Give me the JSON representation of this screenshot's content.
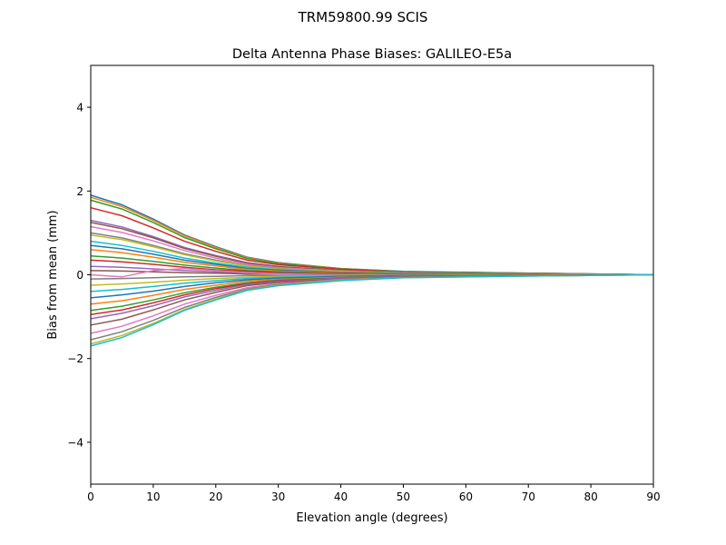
{
  "chart_data": {
    "type": "line",
    "suptitle": "TRM59800.99     SCIS",
    "title": "Delta Antenna Phase Biases: GALILEO-E5a",
    "xlabel": "Elevation angle (degrees)",
    "ylabel": "Bias from mean (mm)",
    "xlim": [
      0,
      90
    ],
    "ylim": [
      -5,
      5
    ],
    "xticks": [
      0,
      10,
      20,
      30,
      40,
      50,
      60,
      70,
      80,
      90
    ],
    "yticks": [
      -4,
      -2,
      0,
      2,
      4
    ],
    "ytick_labels": [
      "−4",
      "−2",
      "0",
      "2",
      "4"
    ],
    "grid": false,
    "colors": [
      "#1f77b4",
      "#ff7f0e",
      "#2ca02c",
      "#d62728",
      "#9467bd",
      "#8c564b",
      "#e377c2",
      "#7f7f7f",
      "#bcbd22",
      "#17becf"
    ],
    "x": [
      0,
      5,
      10,
      15,
      20,
      25,
      30,
      40,
      50,
      70,
      90
    ],
    "series": [
      {
        "values": [
          1.9,
          1.67,
          1.33,
          0.95,
          0.67,
          0.42,
          0.29,
          0.15,
          0.08,
          0.04,
          0
        ]
      },
      {
        "values": [
          1.85,
          1.63,
          1.3,
          0.93,
          0.65,
          0.41,
          0.28,
          0.15,
          0.07,
          0.04,
          0
        ]
      },
      {
        "values": [
          1.78,
          1.57,
          1.25,
          0.89,
          0.62,
          0.39,
          0.27,
          0.14,
          0.07,
          0.04,
          0
        ]
      },
      {
        "values": [
          1.6,
          1.41,
          1.12,
          0.8,
          0.56,
          0.35,
          0.24,
          0.13,
          0.06,
          0.03,
          0
        ]
      },
      {
        "values": [
          1.3,
          1.14,
          0.91,
          0.65,
          0.46,
          0.29,
          0.2,
          0.1,
          0.05,
          0.03,
          0
        ]
      },
      {
        "values": [
          1.25,
          1.1,
          0.88,
          0.63,
          0.44,
          0.28,
          0.19,
          0.1,
          0.05,
          0.03,
          0
        ]
      },
      {
        "values": [
          1.15,
          1.01,
          0.81,
          0.58,
          0.4,
          0.25,
          0.17,
          0.09,
          0.05,
          0.02,
          0
        ]
      },
      {
        "values": [
          1.0,
          0.88,
          0.7,
          0.5,
          0.35,
          0.22,
          0.15,
          0.08,
          0.04,
          0.02,
          0
        ]
      },
      {
        "values": [
          0.95,
          0.84,
          0.67,
          0.48,
          0.33,
          0.21,
          0.14,
          0.08,
          0.04,
          0.02,
          0
        ]
      },
      {
        "values": [
          0.8,
          0.7,
          0.56,
          0.4,
          0.28,
          0.18,
          0.12,
          0.06,
          0.03,
          0.02,
          0
        ]
      },
      {
        "values": [
          0.7,
          0.62,
          0.49,
          0.35,
          0.25,
          0.15,
          0.11,
          0.06,
          0.03,
          0.01,
          0
        ]
      },
      {
        "values": [
          0.6,
          0.53,
          0.42,
          0.3,
          0.21,
          0.13,
          0.09,
          0.05,
          0.02,
          0.01,
          0
        ]
      },
      {
        "values": [
          0.45,
          0.4,
          0.32,
          0.23,
          0.16,
          0.1,
          0.07,
          0.04,
          0.02,
          0.01,
          0
        ]
      },
      {
        "values": [
          0.35,
          0.31,
          0.25,
          0.18,
          0.12,
          0.08,
          0.05,
          0.03,
          0.01,
          0.01,
          0
        ]
      },
      {
        "values": [
          0.2,
          0.18,
          0.14,
          0.1,
          0.07,
          0.04,
          0.03,
          0.02,
          0.01,
          0,
          0
        ]
      },
      {
        "values": [
          0.1,
          0.09,
          0.07,
          0.05,
          0.04,
          0.02,
          0.02,
          0.01,
          0,
          0,
          0
        ]
      },
      {
        "values": [
          0,
          -0.05,
          0.1,
          0.15,
          0.1,
          0.05,
          0.02,
          0,
          0,
          0,
          0
        ]
      },
      {
        "values": [
          -0.1,
          -0.09,
          -0.07,
          -0.05,
          -0.04,
          -0.02,
          -0.02,
          -0.01,
          0,
          0,
          0
        ]
      },
      {
        "values": [
          -0.25,
          -0.22,
          -0.18,
          -0.13,
          -0.09,
          -0.06,
          -0.04,
          -0.02,
          -0.01,
          0,
          0
        ]
      },
      {
        "values": [
          -0.4,
          -0.35,
          -0.28,
          -0.2,
          -0.14,
          -0.09,
          -0.06,
          -0.03,
          -0.02,
          -0.01,
          0
        ]
      },
      {
        "values": [
          -0.55,
          -0.48,
          -0.39,
          -0.28,
          -0.19,
          -0.12,
          -0.08,
          -0.04,
          -0.02,
          -0.01,
          0
        ]
      },
      {
        "values": [
          -0.7,
          -0.62,
          -0.49,
          -0.35,
          -0.25,
          -0.15,
          -0.11,
          -0.06,
          -0.03,
          -0.01,
          0
        ]
      },
      {
        "values": [
          -0.85,
          -0.75,
          -0.6,
          -0.43,
          -0.3,
          -0.19,
          -0.13,
          -0.07,
          -0.03,
          -0.02,
          0
        ]
      },
      {
        "values": [
          -0.95,
          -0.84,
          -0.67,
          -0.48,
          -0.33,
          -0.21,
          -0.14,
          -0.08,
          -0.04,
          -0.02,
          0
        ]
      },
      {
        "values": [
          -1.05,
          -0.92,
          -0.74,
          -0.53,
          -0.37,
          -0.23,
          -0.16,
          -0.08,
          -0.04,
          -0.02,
          0
        ]
      },
      {
        "values": [
          -1.2,
          -1.06,
          -0.84,
          -0.6,
          -0.42,
          -0.26,
          -0.18,
          -0.1,
          -0.05,
          -0.02,
          0
        ]
      },
      {
        "values": [
          -1.4,
          -1.23,
          -0.98,
          -0.7,
          -0.49,
          -0.31,
          -0.21,
          -0.11,
          -0.06,
          -0.03,
          0
        ]
      },
      {
        "values": [
          -1.55,
          -1.36,
          -1.09,
          -0.78,
          -0.54,
          -0.34,
          -0.23,
          -0.12,
          -0.06,
          -0.03,
          0
        ]
      },
      {
        "values": [
          -1.65,
          -1.45,
          -1.16,
          -0.83,
          -0.58,
          -0.36,
          -0.25,
          -0.13,
          -0.07,
          -0.03,
          0
        ]
      },
      {
        "values": [
          -1.7,
          -1.5,
          -1.19,
          -0.85,
          -0.6,
          -0.37,
          -0.26,
          -0.14,
          -0.07,
          -0.03,
          0
        ]
      }
    ]
  }
}
